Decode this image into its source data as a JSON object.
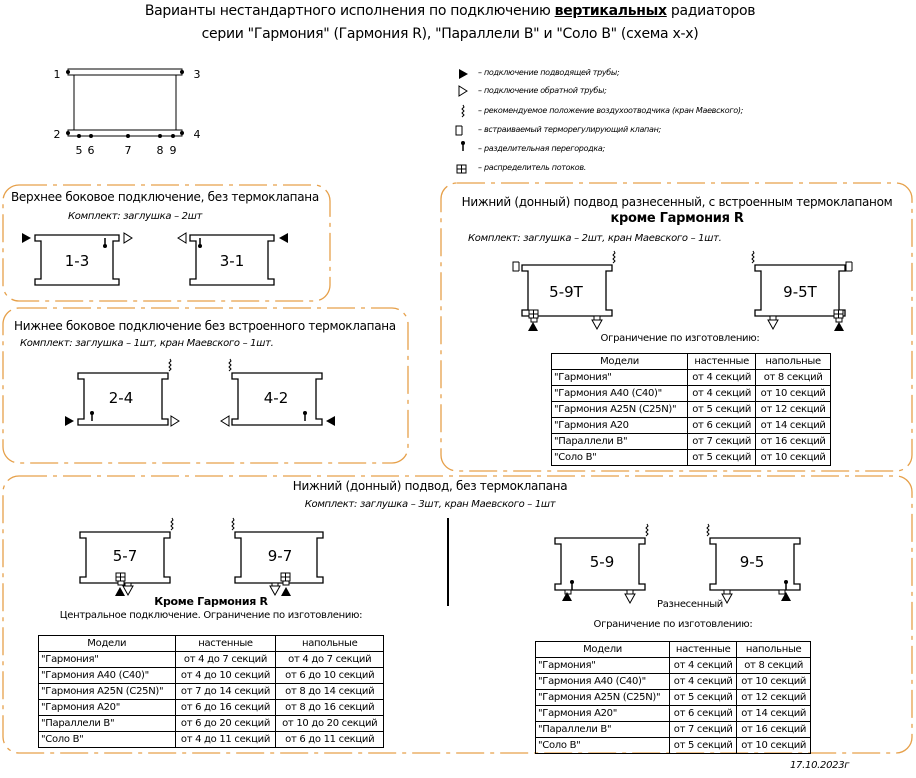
{
  "title": {
    "line1_prefix": "Варианты нестандартного исполнения по подключению",
    "line1_bold": "вертикальных",
    "line1_suffix": "радиаторов",
    "line2": "серии \"Гармония\" (Гармония R), \"Параллели В\" и \"Соло В\"  (схема x-x)"
  },
  "scheme": {
    "points": [
      "1",
      "3",
      "2",
      "4",
      "5",
      "6",
      "7",
      "8",
      "9"
    ]
  },
  "legend": [
    {
      "icon": "supply-arrow-icon",
      "text": "– подключение подводящей трубы;"
    },
    {
      "icon": "return-arrow-icon",
      "text": "– подключение обратной трубы;"
    },
    {
      "icon": "air-vent-icon",
      "text": "– рекомендуемое положение воздухоотводчика (кран Маевского);"
    },
    {
      "icon": "thermo-valve-icon",
      "text": "– встраиваемый терморегулирующий клапан;"
    },
    {
      "icon": "partition-icon",
      "text": "– разделительная перегородка;"
    },
    {
      "icon": "flow-distributor-icon",
      "text": "– распределитель потоков."
    }
  ],
  "sections": {
    "top_side": {
      "title": "Верхнее боковое подключение, без термоклапана",
      "kit": "Комплект: заглушка – 2шт",
      "radiators": [
        "1-3",
        "3-1"
      ]
    },
    "bottom_side": {
      "title": "Нижнее боковое подключение без встроенного термоклапана",
      "kit": "Комплект: заглушка – 1шт, кран Маевского – 1шт.",
      "radiators": [
        "2-4",
        "4-2"
      ]
    },
    "bottom_spread_valve": {
      "title": "Нижний (донный) подвод разнесенный, с встроенным термоклапаном",
      "exception": "кроме Гармония R",
      "kit": "Комплект: заглушка – 2шт, кран Маевского – 1шт.",
      "radiators": [
        "5-9T",
        "9-5T"
      ],
      "limit_caption": "Ограничение по изготовлению:",
      "table": {
        "headers": [
          "Модели",
          "настенные",
          "напольные"
        ],
        "rows": [
          [
            "\"Гармония\"",
            "от 4 секций",
            "от 8 секций"
          ],
          [
            "\"Гармония А40 (С40)\"",
            "от 4 секций",
            "от 10 секций"
          ],
          [
            "\"Гармония А25N (С25N)\"",
            "от 5 секций",
            "от 12 секций"
          ],
          [
            "\"Гармония А20",
            "от 6 секций",
            "от 14 секций"
          ],
          [
            "\"Параллели В\"",
            "от 7 секций",
            "от 16 секций"
          ],
          [
            "\"Соло В\"",
            "от 5 секций",
            "от 10 секций"
          ]
        ]
      }
    },
    "bottom_no_valve": {
      "title": "Нижний (донный) подвод, без термоклапана",
      "kit": "Комплект: заглушка – 3шт, кран Маевского – 1шт",
      "central": {
        "radiators": [
          "5-7",
          "9-7"
        ],
        "exception": "Кроме Гармония R",
        "caption": "Центральное подключение. Ограничение по изготовлению:",
        "table": {
          "headers": [
            "Модели",
            "настенные",
            "напольные"
          ],
          "rows": [
            [
              "\"Гармония\"",
              "от 4 до 7 секций",
              "от 4 до 7 секций"
            ],
            [
              "\"Гармония А40 (С40)\"",
              "от 4 до 10 секций",
              "от 6 до 10 секций"
            ],
            [
              "\"Гармония А25N (С25N)\"",
              "от 7 до 14 секций",
              "от 8 до 14 секций"
            ],
            [
              "\"Гармония А20\"",
              "от 6 до 16 секций",
              "от 8 до 16 секций"
            ],
            [
              "\"Параллели В\"",
              "от 6 до 20 секций",
              "от 10 до 20 секций"
            ],
            [
              "\"Соло В\"",
              "от 4 до 11 секций",
              "от 6 до 11 секций"
            ]
          ]
        }
      },
      "spread": {
        "radiators": [
          "5-9",
          "9-5"
        ],
        "label": "Разнесенный",
        "caption": "Ограничение по изготовлению:",
        "table": {
          "headers": [
            "Модели",
            "настенные",
            "напольные"
          ],
          "rows": [
            [
              "\"Гармония\"",
              "от 4 секций",
              "от 8 секций"
            ],
            [
              "\"Гармония А40 (С40)\"",
              "от 4 секций",
              "от 10 секций"
            ],
            [
              "\"Гармония А25N (С25N)\"",
              "от 5 секций",
              "от 12 секций"
            ],
            [
              "\"Гармония А20\"",
              "от 6 секций",
              "от 14 секций"
            ],
            [
              "\"Параллели В\"",
              "от 7 секций",
              "от 16 секций"
            ],
            [
              "\"Соло В\"",
              "от 5 секций",
              "от 10 секций"
            ]
          ]
        }
      }
    }
  },
  "date": "17.10.2023г",
  "colors": {
    "frame": "#e6a04a",
    "line": "#000000"
  }
}
